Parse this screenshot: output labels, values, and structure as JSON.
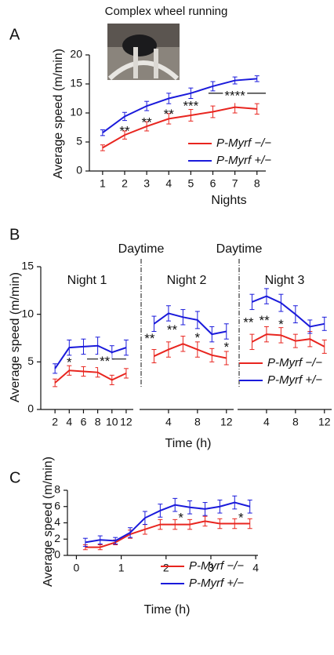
{
  "chart_data": [
    {
      "type": "line",
      "panel": "A",
      "title": "Complex wheel running",
      "xlabel": "Nights",
      "ylabel": "Average speed (m/min)",
      "x": [
        1,
        2,
        3,
        4,
        5,
        6,
        7,
        8
      ],
      "xlim": [
        0.4,
        8.4
      ],
      "xticks": [
        1,
        2,
        3,
        4,
        5,
        6,
        7,
        8
      ],
      "ylim": [
        0,
        20
      ],
      "yticks": [
        0,
        5,
        10,
        15,
        20
      ],
      "legend": "lower right",
      "series": [
        {
          "name": "P-Myrf −/−",
          "color": "#e8251f",
          "values": [
            4.0,
            6.2,
            7.7,
            9.0,
            9.6,
            10.2,
            11.0,
            10.7
          ],
          "errors": [
            0.5,
            0.7,
            0.8,
            0.9,
            1.0,
            1.0,
            1.0,
            0.9
          ]
        },
        {
          "name": "P-Myrf +/−",
          "color": "#1a1adb",
          "values": [
            6.6,
            9.4,
            11.2,
            12.5,
            13.4,
            14.6,
            15.6,
            15.9
          ],
          "errors": [
            0.5,
            0.7,
            0.8,
            0.9,
            0.9,
            0.8,
            0.6,
            0.5
          ]
        }
      ],
      "annotations": [
        {
          "x": 2,
          "y": 7.3,
          "text": "**"
        },
        {
          "x": 3,
          "y": 8.8,
          "text": "**"
        },
        {
          "x": 4,
          "y": 10.2,
          "text": "**"
        },
        {
          "x": 5,
          "y": 11.6,
          "text": "***"
        },
        {
          "x": 7,
          "y": 13.4,
          "text": "****",
          "span": [
            5.8,
            8.4
          ]
        }
      ]
    },
    {
      "type": "line",
      "panel": "B",
      "xlabel": "Time (h)",
      "ylabel": "Average speed (m/min)",
      "ylim": [
        0,
        15
      ],
      "yticks": [
        0,
        5,
        10,
        15
      ],
      "legend": "lower right",
      "subplots": [
        {
          "subtitle": "Night 1",
          "x": [
            2,
            4,
            6,
            8,
            10,
            12
          ],
          "xlim": [
            0,
            13
          ],
          "xticks": [
            2,
            4,
            6,
            8,
            10,
            12
          ],
          "series": [
            {
              "color": "#e8251f",
              "values": [
                2.8,
                4.1,
                4.0,
                3.9,
                3.1,
                3.8
              ],
              "errors": [
                0.4,
                0.5,
                0.5,
                0.5,
                0.5,
                0.5
              ]
            },
            {
              "color": "#1a1adb",
              "values": [
                4.3,
                6.5,
                6.6,
                6.7,
                6.0,
                6.5
              ],
              "errors": [
                0.5,
                0.8,
                0.8,
                0.9,
                0.7,
                0.8
              ]
            }
          ],
          "annotations": [
            {
              "x": 4,
              "y": 5.2,
              "text": "*"
            },
            {
              "x": 9,
              "y": 5.3,
              "text": "**",
              "span": [
                6.5,
                12
              ]
            }
          ]
        },
        {
          "subtitle": "Night 2",
          "divider_label": "Daytime",
          "x": [
            2,
            4,
            6,
            8,
            10,
            12
          ],
          "xlim": [
            0,
            13
          ],
          "xticks": [
            4,
            8,
            12
          ],
          "series": [
            {
              "color": "#e8251f",
              "values": [
                5.6,
                6.3,
                6.9,
                6.3,
                5.7,
                5.4
              ],
              "errors": [
                0.7,
                0.8,
                0.8,
                0.8,
                0.7,
                0.7
              ]
            },
            {
              "color": "#1a1adb",
              "values": [
                9.0,
                10.1,
                9.7,
                9.4,
                7.9,
                8.2
              ],
              "errors": [
                0.8,
                0.8,
                0.8,
                0.9,
                0.8,
                0.8
              ]
            }
          ],
          "annotations": [
            {
              "x": 1.4,
              "y": 7.7,
              "text": "**"
            },
            {
              "x": 4.5,
              "y": 8.6,
              "text": "**"
            },
            {
              "x": 8,
              "y": 7.8,
              "text": "*"
            },
            {
              "x": 12,
              "y": 6.8,
              "text": "*"
            }
          ]
        },
        {
          "subtitle": "Night 3",
          "divider_label": "Daytime",
          "x": [
            2,
            4,
            6,
            8,
            10,
            12
          ],
          "xlim": [
            0,
            13
          ],
          "xticks": [
            4,
            8,
            12
          ],
          "series": [
            {
              "name": "P-Myrf −/−",
              "color": "#e8251f",
              "values": [
                7.1,
                7.9,
                7.8,
                7.2,
                7.4,
                6.6
              ],
              "errors": [
                0.8,
                0.8,
                0.8,
                0.7,
                0.8,
                0.7
              ]
            },
            {
              "name": "P-Myrf +/−",
              "color": "#1a1adb",
              "values": [
                11.3,
                11.9,
                11.2,
                10.0,
                8.7,
                9.0
              ],
              "errors": [
                0.8,
                0.8,
                0.9,
                0.9,
                0.7,
                0.7
              ]
            }
          ],
          "annotations": [
            {
              "x": 1.5,
              "y": 9.4,
              "text": "**"
            },
            {
              "x": 3.7,
              "y": 9.6,
              "text": "**"
            },
            {
              "x": 6,
              "y": 9.2,
              "text": "*"
            }
          ]
        }
      ]
    },
    {
      "type": "line",
      "panel": "C",
      "xlabel": "Time (h)",
      "ylabel": "Average speed (m/min)",
      "x": [
        0.2,
        0.53,
        0.87,
        1.2,
        1.53,
        1.87,
        2.2,
        2.53,
        2.87,
        3.2,
        3.53,
        3.87
      ],
      "xlim": [
        -0.2,
        4.05
      ],
      "xticks": [
        0,
        1,
        2,
        3,
        4
      ],
      "ylim": [
        0,
        8
      ],
      "yticks": [
        0,
        2,
        4,
        6,
        8
      ],
      "legend": "lower right",
      "series": [
        {
          "name": "P-Myrf −/−",
          "color": "#e8251f",
          "values": [
            1.0,
            1.0,
            1.6,
            2.6,
            3.2,
            3.8,
            3.8,
            3.8,
            4.2,
            3.9,
            3.9,
            3.9
          ],
          "errors": [
            0.3,
            0.3,
            0.3,
            0.5,
            0.6,
            0.6,
            0.6,
            0.6,
            0.6,
            0.6,
            0.6,
            0.6
          ]
        },
        {
          "name": "P-Myrf +/−",
          "color": "#1a1adb",
          "values": [
            1.6,
            1.9,
            1.8,
            2.8,
            4.6,
            5.5,
            6.2,
            5.9,
            5.7,
            6.0,
            6.5,
            6.0
          ],
          "errors": [
            0.5,
            0.5,
            0.4,
            0.6,
            0.8,
            0.8,
            0.8,
            0.8,
            0.8,
            0.8,
            0.8,
            0.8
          ]
        }
      ],
      "annotations": [
        {
          "x": 2.33,
          "y": 4.9,
          "text": "*"
        },
        {
          "x": 3.67,
          "y": 4.9,
          "text": "*"
        }
      ]
    }
  ]
}
